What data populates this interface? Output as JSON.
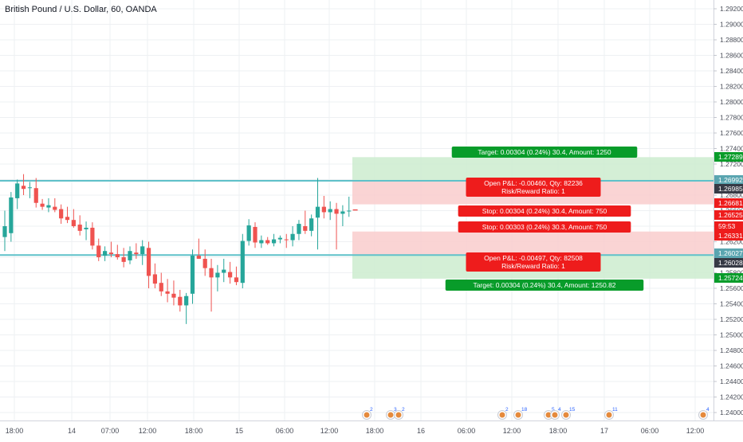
{
  "title": "British Pound / U.S. Dollar, 60, OANDA",
  "colors": {
    "up": "#26a69a",
    "down": "#ef5350",
    "level_line": "#5fc1c9",
    "target_zone": "#cdeccf",
    "stop_zone": "#f9cdcd",
    "target_tag": "#089c2a",
    "stop_tag": "#ee1c1c",
    "price_label_dark": "#363a45",
    "price_label_blue": "#5aa5b0",
    "grid": "#eef0f3",
    "axis_text": "#4a4e59"
  },
  "chart_data": {
    "type": "candlestick",
    "ylim": [
      1.2337,
      1.2937
    ],
    "y_ticks": [
      1.292,
      1.29,
      1.288,
      1.286,
      1.284,
      1.282,
      1.28,
      1.278,
      1.276,
      1.274,
      1.272,
      1.27,
      1.268,
      1.266,
      1.264,
      1.262,
      1.26,
      1.258,
      1.256,
      1.254,
      1.252,
      1.25,
      1.248,
      1.246,
      1.244,
      1.242,
      1.24
    ],
    "y_tick_labels": [
      "1.29200",
      "1.29000",
      "1.28800",
      "1.28600",
      "1.28400",
      "1.28200",
      "1.28000",
      "1.27800",
      "1.27600",
      "1.27400",
      "1.27200",
      "1.27000",
      "1.26800",
      "1.26600",
      "1.26400",
      "1.26200",
      "1.26000",
      "1.25800",
      "1.25600",
      "1.25400",
      "1.25200",
      "1.25000",
      "1.24800",
      "1.24600",
      "1.24400",
      "1.24200",
      "1.24000"
    ],
    "x_tick_labels": [
      "18:00",
      "14",
      "07:00",
      "12:00",
      "18:00",
      "15",
      "06:00",
      "12:00",
      "18:00",
      "16",
      "06:00",
      "12:00",
      "18:00",
      "17",
      "06:00",
      "12:00"
    ],
    "candles": [
      {
        "o": 1.2626,
        "h": 1.266,
        "l": 1.2608,
        "c": 1.264
      },
      {
        "o": 1.2631,
        "h": 1.2684,
        "l": 1.262,
        "c": 1.2677
      },
      {
        "o": 1.2676,
        "h": 1.27,
        "l": 1.2662,
        "c": 1.2695
      },
      {
        "o": 1.2692,
        "h": 1.2707,
        "l": 1.268,
        "c": 1.2688
      },
      {
        "o": 1.2689,
        "h": 1.2697,
        "l": 1.2676,
        "c": 1.269
      },
      {
        "o": 1.2689,
        "h": 1.2702,
        "l": 1.2664,
        "c": 1.267
      },
      {
        "o": 1.2669,
        "h": 1.2675,
        "l": 1.2661,
        "c": 1.2665
      },
      {
        "o": 1.2664,
        "h": 1.2676,
        "l": 1.2658,
        "c": 1.2667
      },
      {
        "o": 1.2665,
        "h": 1.2676,
        "l": 1.2658,
        "c": 1.2661
      },
      {
        "o": 1.2662,
        "h": 1.2668,
        "l": 1.2643,
        "c": 1.265
      },
      {
        "o": 1.2652,
        "h": 1.2665,
        "l": 1.2644,
        "c": 1.2648
      },
      {
        "o": 1.2648,
        "h": 1.2662,
        "l": 1.2638,
        "c": 1.264
      },
      {
        "o": 1.2642,
        "h": 1.2654,
        "l": 1.2628,
        "c": 1.2634
      },
      {
        "o": 1.2636,
        "h": 1.2646,
        "l": 1.2622,
        "c": 1.2638
      },
      {
        "o": 1.2638,
        "h": 1.2645,
        "l": 1.261,
        "c": 1.2615
      },
      {
        "o": 1.2615,
        "h": 1.2624,
        "l": 1.2595,
        "c": 1.26
      },
      {
        "o": 1.2602,
        "h": 1.2614,
        "l": 1.2595,
        "c": 1.2608
      },
      {
        "o": 1.2606,
        "h": 1.262,
        "l": 1.26,
        "c": 1.2604
      },
      {
        "o": 1.2604,
        "h": 1.2616,
        "l": 1.2597,
        "c": 1.26
      },
      {
        "o": 1.26,
        "h": 1.2612,
        "l": 1.2587,
        "c": 1.2594
      },
      {
        "o": 1.2596,
        "h": 1.2614,
        "l": 1.2591,
        "c": 1.2608
      },
      {
        "o": 1.2606,
        "h": 1.2618,
        "l": 1.2598,
        "c": 1.2604
      },
      {
        "o": 1.2604,
        "h": 1.2622,
        "l": 1.259,
        "c": 1.2614
      },
      {
        "o": 1.2612,
        "h": 1.262,
        "l": 1.256,
        "c": 1.2576
      },
      {
        "o": 1.2578,
        "h": 1.2592,
        "l": 1.256,
        "c": 1.2566
      },
      {
        "o": 1.2567,
        "h": 1.258,
        "l": 1.255,
        "c": 1.2556
      },
      {
        "o": 1.2556,
        "h": 1.2572,
        "l": 1.2542,
        "c": 1.2553
      },
      {
        "o": 1.2553,
        "h": 1.257,
        "l": 1.2538,
        "c": 1.2548
      },
      {
        "o": 1.2549,
        "h": 1.2558,
        "l": 1.253,
        "c": 1.2538
      },
      {
        "o": 1.2538,
        "h": 1.2554,
        "l": 1.2514,
        "c": 1.255
      },
      {
        "o": 1.2553,
        "h": 1.261,
        "l": 1.254,
        "c": 1.2602
      },
      {
        "o": 1.2602,
        "h": 1.2624,
        "l": 1.2598,
        "c": 1.2598
      },
      {
        "o": 1.2598,
        "h": 1.261,
        "l": 1.2576,
        "c": 1.2586
      },
      {
        "o": 1.2586,
        "h": 1.2598,
        "l": 1.253,
        "c": 1.2574
      },
      {
        "o": 1.2574,
        "h": 1.259,
        "l": 1.2556,
        "c": 1.258
      },
      {
        "o": 1.258,
        "h": 1.2598,
        "l": 1.2568,
        "c": 1.2584
      },
      {
        "o": 1.2581,
        "h": 1.2594,
        "l": 1.2566,
        "c": 1.2574
      },
      {
        "o": 1.2574,
        "h": 1.2588,
        "l": 1.2564,
        "c": 1.2568
      },
      {
        "o": 1.2567,
        "h": 1.263,
        "l": 1.256,
        "c": 1.2621
      },
      {
        "o": 1.2621,
        "h": 1.2649,
        "l": 1.2615,
        "c": 1.2641
      },
      {
        "o": 1.2639,
        "h": 1.2645,
        "l": 1.2612,
        "c": 1.2619
      },
      {
        "o": 1.2618,
        "h": 1.2628,
        "l": 1.2612,
        "c": 1.2622
      },
      {
        "o": 1.2622,
        "h": 1.2626,
        "l": 1.2616,
        "c": 1.2618
      },
      {
        "o": 1.2618,
        "h": 1.263,
        "l": 1.2614,
        "c": 1.2623
      },
      {
        "o": 1.2623,
        "h": 1.2628,
        "l": 1.2618,
        "c": 1.2625
      },
      {
        "o": 1.2623,
        "h": 1.263,
        "l": 1.2612,
        "c": 1.2622
      },
      {
        "o": 1.2622,
        "h": 1.264,
        "l": 1.2614,
        "c": 1.263
      },
      {
        "o": 1.263,
        "h": 1.2648,
        "l": 1.2622,
        "c": 1.2643
      },
      {
        "o": 1.264,
        "h": 1.266,
        "l": 1.263,
        "c": 1.2634
      },
      {
        "o": 1.2634,
        "h": 1.2655,
        "l": 1.2627,
        "c": 1.265
      },
      {
        "o": 1.2651,
        "h": 1.2702,
        "l": 1.261,
        "c": 1.2665
      },
      {
        "o": 1.2665,
        "h": 1.2679,
        "l": 1.265,
        "c": 1.2658
      },
      {
        "o": 1.2658,
        "h": 1.2672,
        "l": 1.2648,
        "c": 1.2662
      },
      {
        "o": 1.2662,
        "h": 1.267,
        "l": 1.261,
        "c": 1.2656
      },
      {
        "o": 1.2656,
        "h": 1.2667,
        "l": 1.264,
        "c": 1.2659
      },
      {
        "o": 1.2659,
        "h": 1.2678,
        "l": 1.2652,
        "c": 1.266
      }
    ],
    "last_candle_open": 1.26609,
    "horizontal_levels": [
      1.26985,
      1.26028
    ],
    "positions": [
      {
        "entry": 1.26985,
        "target": 1.27289,
        "stop": 1.26681,
        "target_zone": [
          1.26985,
          1.27289
        ],
        "stop_zone": [
          1.26681,
          1.26985
        ],
        "target_label": "Target: 0.00304 (0.24%) 30.4, Amount: 1250",
        "stop_label": "Stop: 0.00304 (0.24%) 30.4, Amount: 750",
        "pnl_label": "Open P&L: -0.00460, Qty: 82236",
        "rr_label": "Risk/Reward Ratio: 1"
      },
      {
        "entry": 1.26028,
        "target": 1.25724,
        "stop": 1.26331,
        "target_zone": [
          1.25724,
          1.26028
        ],
        "stop_zone": [
          1.26028,
          1.26331
        ],
        "target_label": "Target: 0.00304 (0.24%) 30.4, Amount: 1250.82",
        "stop_label": "Stop: 0.00303 (0.24%) 30.3, Amount: 750",
        "pnl_label": "Open P&L: -0.00497, Qty: 82508",
        "rr_label": "Risk/Reward Ratio: 1"
      }
    ],
    "price_labels": [
      {
        "text": "1.27289",
        "style": "green"
      },
      {
        "text": "1.26992",
        "style": "blue"
      },
      {
        "text": "1.26985",
        "style": "dark"
      },
      {
        "text": "1.26681",
        "style": "red"
      },
      {
        "text": "1.26525",
        "style": "red"
      },
      {
        "text": "59:53",
        "style": "red"
      },
      {
        "text": "1.26331",
        "style": "red"
      },
      {
        "text": "1.26027",
        "style": "blue"
      },
      {
        "text": "1.26028",
        "style": "dark"
      },
      {
        "text": "1.25724",
        "style": "green"
      }
    ],
    "event_badges": [
      "2",
      "3",
      "2",
      "2",
      "18",
      "5",
      "4",
      "15",
      "11",
      "4"
    ]
  }
}
